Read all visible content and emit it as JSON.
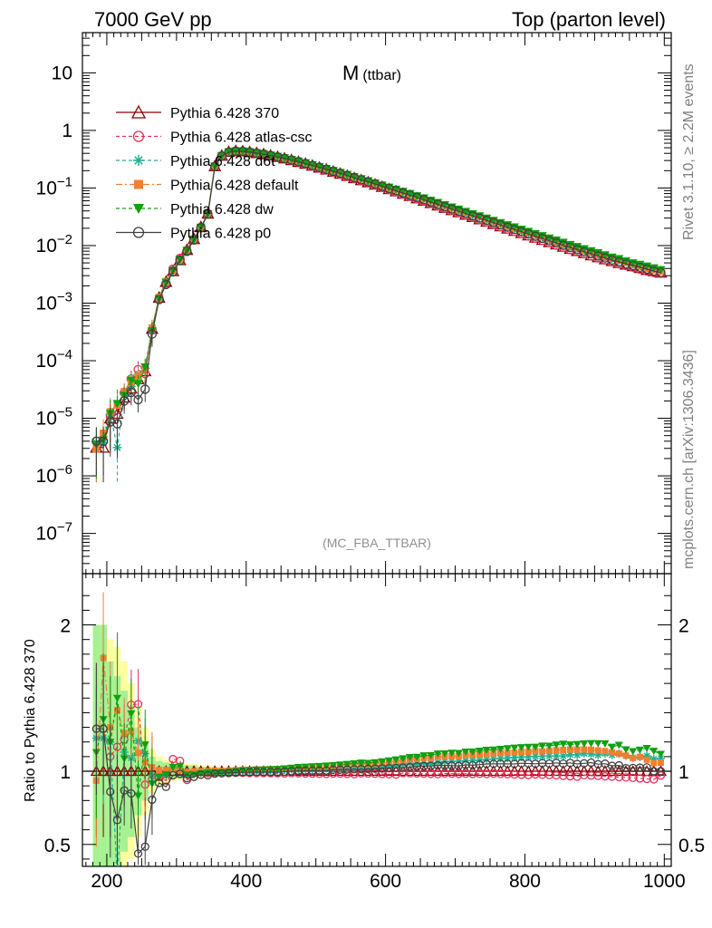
{
  "header": {
    "left": "7000 GeV pp",
    "right": "Top (parton level)"
  },
  "side": {
    "rivet": "Rivet 3.1.10, ≥ 2.2M events",
    "mcplots": "mcplots.cern.ch [arXiv:1306.3436]"
  },
  "chart_data": [
    {
      "type": "line",
      "title": "M",
      "title_sub": "(ttbar)",
      "annotation": "(MC_FBA_TTBAR)",
      "xlabel": "",
      "ylabel": "",
      "xlim": [
        165,
        1010
      ],
      "y_scale": "log",
      "ylim": [
        2e-08,
        50
      ],
      "legend_position": "top-left",
      "x_tick_labels": [
        "200",
        "400",
        "600",
        "800",
        "1000"
      ],
      "y_tick_labels": [
        {
          "m": "10",
          "e": ""
        },
        {
          "m": "1",
          "e": ""
        },
        {
          "m": "10",
          "e": "−1"
        },
        {
          "m": "10",
          "e": "−2"
        },
        {
          "m": "10",
          "e": "−3"
        },
        {
          "m": "10",
          "e": "−4"
        },
        {
          "m": "10",
          "e": "−5"
        },
        {
          "m": "10",
          "e": "−6"
        },
        {
          "m": "10",
          "e": "−7"
        }
      ],
      "x": [
        185,
        195,
        205,
        215,
        225,
        235,
        245,
        255,
        265,
        275,
        285,
        295,
        305,
        315,
        325,
        335,
        345,
        355,
        365,
        375,
        385,
        395,
        405,
        415,
        425,
        435,
        445,
        455,
        465,
        475,
        485,
        495,
        505,
        515,
        525,
        535,
        545,
        555,
        565,
        575,
        585,
        595,
        605,
        615,
        625,
        635,
        645,
        655,
        665,
        675,
        685,
        695,
        705,
        715,
        725,
        735,
        745,
        755,
        765,
        775,
        785,
        795,
        805,
        815,
        825,
        835,
        845,
        855,
        865,
        875,
        885,
        895,
        905,
        915,
        925,
        935,
        945,
        955,
        965,
        975,
        985,
        995
      ],
      "series": [
        {
          "name": "Pythia 6.428 370",
          "color": "#8b0000",
          "marker": "triangle-open",
          "dash": "",
          "values": [
            3.1e-06,
            3.1e-06,
            1e-05,
            1.2e-05,
            2.3e-05,
            3.3e-05,
            4.8e-05,
            6.6e-05,
            0.00036,
            0.00125,
            0.00235,
            0.0036,
            0.0056,
            0.0084,
            0.013,
            0.021,
            0.036,
            0.24,
            0.365,
            0.425,
            0.44,
            0.435,
            0.422,
            0.405,
            0.388,
            0.368,
            0.348,
            0.327,
            0.306,
            0.285,
            0.265,
            0.245,
            0.227,
            0.21,
            0.193,
            0.178,
            0.163,
            0.149,
            0.137,
            0.126,
            0.115,
            0.105,
            0.096,
            0.088,
            0.08,
            0.073,
            0.0665,
            0.0605,
            0.055,
            0.05,
            0.0455,
            0.0415,
            0.038,
            0.0345,
            0.0315,
            0.0287,
            0.0261,
            0.0238,
            0.0217,
            0.0198,
            0.0181,
            0.0165,
            0.0151,
            0.0138,
            0.0126,
            0.0115,
            0.0105,
            0.0096,
            0.0088,
            0.0081,
            0.0074,
            0.0068,
            0.0063,
            0.0058,
            0.0054,
            0.005,
            0.0047,
            0.0044,
            0.0041,
            0.0038,
            0.0036,
            0.0034
          ]
        },
        {
          "name": "Pythia 6.428 atlas-csc",
          "color": "#e8305a",
          "marker": "circle-open",
          "dash": "4,3",
          "values": [
            4e-06,
            4e-06,
            1.1e-05,
            1.4e-05,
            2.8e-05,
            4.8e-05,
            7e-05,
            6e-05,
            0.00034,
            0.0012,
            0.0022,
            0.0039,
            0.006,
            0.0079,
            0.0125,
            0.0205,
            0.0355,
            0.237,
            0.36,
            0.42,
            0.435,
            0.43,
            0.417,
            0.4,
            0.383,
            0.363,
            0.343,
            0.322,
            0.302,
            0.281,
            0.261,
            0.241,
            0.223,
            0.206,
            0.19,
            0.175,
            0.16,
            0.146,
            0.135,
            0.124,
            0.113,
            0.103,
            0.094,
            0.086,
            0.079,
            0.072,
            0.0655,
            0.0595,
            0.054,
            0.049,
            0.0448,
            0.0408,
            0.0373,
            0.0339,
            0.0309,
            0.0282,
            0.0256,
            0.0234,
            0.0213,
            0.0194,
            0.0177,
            0.0161,
            0.0147,
            0.0135,
            0.0123,
            0.0112,
            0.0102,
            0.0093,
            0.0085,
            0.0078,
            0.0072,
            0.0066,
            0.0061,
            0.0056,
            0.0052,
            0.0048,
            0.0045,
            0.0042,
            0.0039,
            0.0036,
            0.0034,
            0.0033
          ]
        },
        {
          "name": "Pythia 6.428 d6t",
          "color": "#20b090",
          "marker": "star",
          "dash": "4,3",
          "values": [
            3.8e-06,
            3.8e-06,
            1.2e-05,
            3.1e-06,
            2.6e-05,
            3.6e-05,
            5.8e-05,
            7.4e-05,
            0.00035,
            0.00123,
            0.0023,
            0.0037,
            0.0057,
            0.0082,
            0.0128,
            0.0208,
            0.0358,
            0.239,
            0.363,
            0.424,
            0.44,
            0.436,
            0.423,
            0.407,
            0.39,
            0.37,
            0.35,
            0.33,
            0.31,
            0.289,
            0.269,
            0.249,
            0.231,
            0.214,
            0.197,
            0.182,
            0.167,
            0.153,
            0.141,
            0.13,
            0.119,
            0.109,
            0.1,
            0.092,
            0.084,
            0.077,
            0.07,
            0.064,
            0.058,
            0.053,
            0.0485,
            0.0443,
            0.0406,
            0.037,
            0.0338,
            0.0309,
            0.0282,
            0.0258,
            0.0236,
            0.0216,
            0.0198,
            0.0181,
            0.0166,
            0.0152,
            0.0139,
            0.0127,
            0.0116,
            0.0106,
            0.0098,
            0.009,
            0.0083,
            0.0076,
            0.007,
            0.0065,
            0.006,
            0.0056,
            0.0052,
            0.0048,
            0.0045,
            0.0042,
            0.0039,
            0.0037
          ]
        },
        {
          "name": "Pythia 6.428 default",
          "color": "#f08030",
          "marker": "square",
          "dash": "7,3,2,3",
          "values": [
            2.9e-06,
            5.5e-06,
            1.3e-05,
            1.7e-05,
            2.9e-05,
            4.2e-05,
            5.4e-05,
            7e-05,
            0.00037,
            0.00126,
            0.00237,
            0.00365,
            0.00565,
            0.00835,
            0.013,
            0.021,
            0.036,
            0.241,
            0.366,
            0.427,
            0.443,
            0.439,
            0.426,
            0.41,
            0.393,
            0.373,
            0.353,
            0.333,
            0.313,
            0.292,
            0.272,
            0.252,
            0.234,
            0.217,
            0.2,
            0.185,
            0.17,
            0.156,
            0.144,
            0.132,
            0.121,
            0.111,
            0.102,
            0.094,
            0.086,
            0.079,
            0.072,
            0.066,
            0.06,
            0.055,
            0.05,
            0.0458,
            0.0419,
            0.0383,
            0.035,
            0.032,
            0.0292,
            0.0267,
            0.0244,
            0.0223,
            0.0204,
            0.0187,
            0.0171,
            0.0157,
            0.0143,
            0.0131,
            0.012,
            0.011,
            0.0101,
            0.0093,
            0.0085,
            0.0078,
            0.0072,
            0.0066,
            0.0061,
            0.0056,
            0.0052,
            0.0048,
            0.0045,
            0.0041,
            0.0038,
            0.0036
          ]
        },
        {
          "name": "Pythia 6.428 dw",
          "color": "#10a010",
          "marker": "triangle-down",
          "dash": "4,3",
          "values": [
            3.5e-06,
            4.2e-06,
            1.2e-05,
            1.8e-05,
            2.5e-05,
            4.6e-05,
            4e-05,
            7.8e-05,
            0.00033,
            0.0012,
            0.0023,
            0.0037,
            0.0058,
            0.0082,
            0.0127,
            0.0207,
            0.0357,
            0.238,
            0.362,
            0.423,
            0.44,
            0.437,
            0.425,
            0.409,
            0.392,
            0.373,
            0.353,
            0.333,
            0.313,
            0.293,
            0.273,
            0.253,
            0.235,
            0.218,
            0.201,
            0.186,
            0.171,
            0.157,
            0.145,
            0.133,
            0.122,
            0.112,
            0.103,
            0.095,
            0.087,
            0.08,
            0.073,
            0.067,
            0.061,
            0.056,
            0.051,
            0.0467,
            0.0427,
            0.0391,
            0.0357,
            0.0327,
            0.0299,
            0.0273,
            0.025,
            0.0229,
            0.021,
            0.0192,
            0.0176,
            0.0161,
            0.0148,
            0.0135,
            0.0124,
            0.0114,
            0.0104,
            0.0096,
            0.0088,
            0.0081,
            0.0075,
            0.0069,
            0.0063,
            0.0059,
            0.0054,
            0.005,
            0.0047,
            0.0044,
            0.0041,
            0.0038
          ]
        },
        {
          "name": "Pythia 6.428 p0",
          "color": "#404040",
          "marker": "circle-open",
          "dash": "",
          "values": [
            4e-06,
            4e-06,
            8.6e-06,
            8e-06,
            2e-05,
            2.8e-05,
            2.1e-05,
            3.2e-05,
            0.00029,
            0.00115,
            0.0021,
            0.0035,
            0.0055,
            0.008,
            0.0125,
            0.0205,
            0.035,
            0.236,
            0.36,
            0.42,
            0.436,
            0.432,
            0.419,
            0.403,
            0.386,
            0.366,
            0.346,
            0.326,
            0.306,
            0.286,
            0.266,
            0.246,
            0.228,
            0.211,
            0.195,
            0.18,
            0.165,
            0.151,
            0.139,
            0.128,
            0.117,
            0.107,
            0.098,
            0.09,
            0.082,
            0.075,
            0.0687,
            0.0626,
            0.057,
            0.052,
            0.0473,
            0.0431,
            0.0394,
            0.036,
            0.0328,
            0.03,
            0.0274,
            0.025,
            0.0228,
            0.0208,
            0.019,
            0.0174,
            0.0159,
            0.0145,
            0.0133,
            0.0121,
            0.0111,
            0.0101,
            0.0093,
            0.0085,
            0.0078,
            0.0072,
            0.0066,
            0.0061,
            0.0056,
            0.0052,
            0.0048,
            0.0045,
            0.0042,
            0.0039,
            0.0036,
            0.0034
          ]
        }
      ]
    },
    {
      "type": "line",
      "ylabel": "Ratio to Pythia 6.428 370",
      "xlim": [
        165,
        1010
      ],
      "ylim": [
        0.35,
        2.35
      ],
      "reference_line": 1,
      "y_tick_labels": [
        "2",
        "1",
        "0.5"
      ],
      "band": {
        "x": [
          185,
          195,
          205,
          215,
          225,
          235,
          245,
          255,
          265,
          275,
          285,
          295,
          305,
          315,
          325,
          335,
          345,
          355,
          365,
          375
        ],
        "yellow": [
          1.0,
          1.0,
          0.9,
          0.85,
          0.75,
          0.6,
          0.45,
          0.3,
          0.15,
          0.1,
          0.08,
          0.07,
          0.06,
          0.05,
          0.05,
          0.04,
          0.04,
          0.03,
          0.03,
          0.02
        ],
        "green": [
          1.0,
          1.0,
          0.75,
          0.65,
          0.55,
          0.45,
          0.3,
          0.2,
          0.1,
          0.07,
          0.06,
          0.05,
          0.05,
          0.04,
          0.04,
          0.03,
          0.03,
          0.02,
          0.02,
          0.02
        ]
      },
      "ratio_note": "ratio = series value / Pythia 6.428 370 value at each x"
    }
  ]
}
